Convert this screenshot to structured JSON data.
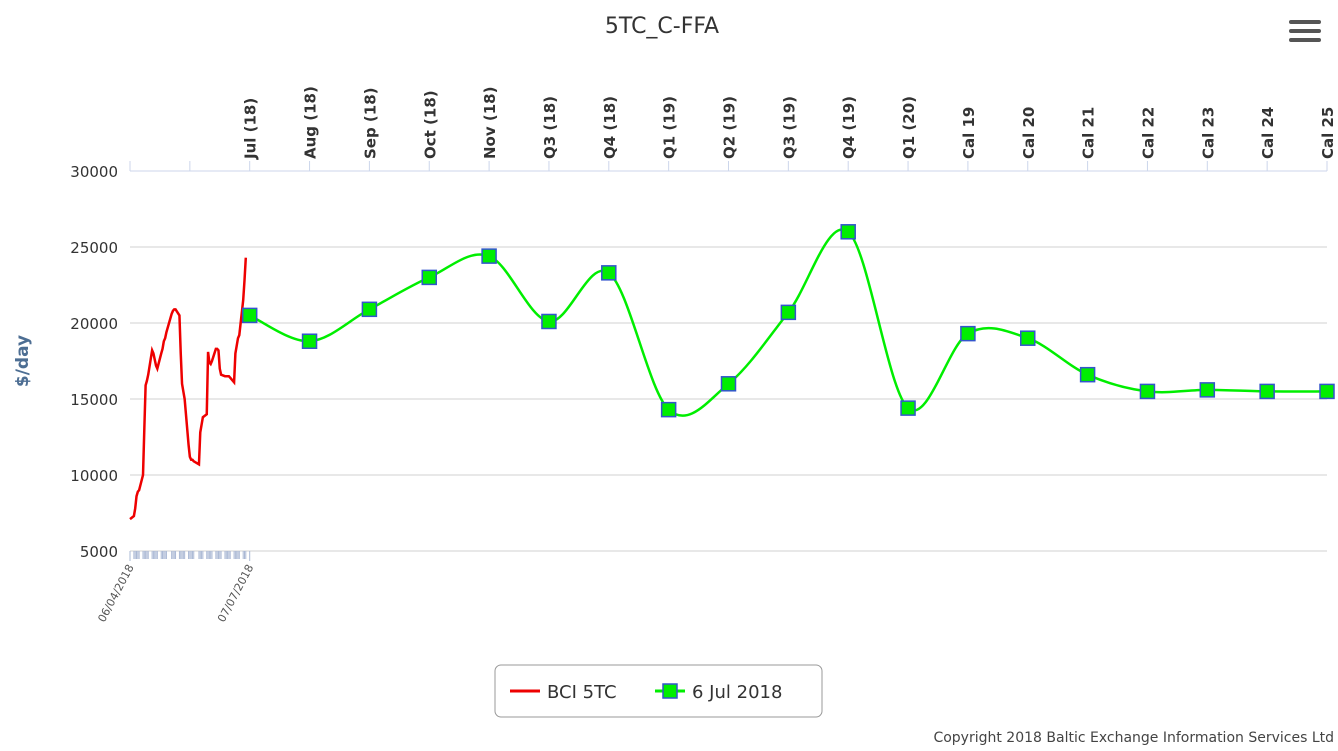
{
  "chart_data": {
    "type": "line",
    "title": "5TC_C-FFA",
    "ylabel": "$/day",
    "credit": "Copyright 2018 Baltic Exchange Information Services Ltd",
    "categories": [
      null,
      null,
      "Jul (18)",
      "Aug (18)",
      "Sep (18)",
      "Oct (18)",
      "Nov (18)",
      "Q3 (18)",
      "Q4 (18)",
      "Q1 (19)",
      "Q2 (19)",
      "Q3 (19)",
      "Q4 (19)",
      "Q1 (20)",
      "Cal 19",
      "Cal 20",
      "Cal 21",
      "Cal 22",
      "Cal 23",
      "Cal 24",
      "Cal 25"
    ],
    "xlim": [
      "06/04/2018",
      "07/07/2018"
    ],
    "xticks": [
      "06/04/2018",
      "07/07/2018"
    ],
    "ylim": [
      5000,
      30000
    ],
    "yticks": [
      5000,
      10000,
      15000,
      20000,
      25000,
      30000
    ],
    "grid": true,
    "legend": "bottom",
    "series": [
      {
        "name": "BCI 5TC",
        "color": "#ee0000",
        "x": [
          "06/04/2018",
          "09/04/2018",
          "10/04/2018",
          "11/04/2018",
          "12/04/2018",
          "13/04/2018",
          "16/04/2018",
          "17/04/2018",
          "18/04/2018",
          "19/04/2018",
          "20/04/2018",
          "23/04/2018",
          "24/04/2018",
          "25/04/2018",
          "26/04/2018",
          "27/04/2018",
          "30/04/2018",
          "01/05/2018",
          "02/05/2018",
          "03/05/2018",
          "04/05/2018",
          "08/05/2018",
          "09/05/2018",
          "10/05/2018",
          "11/05/2018",
          "14/05/2018",
          "15/05/2018",
          "16/05/2018",
          "17/05/2018",
          "18/05/2018",
          "21/05/2018",
          "22/05/2018",
          "23/05/2018",
          "24/05/2018",
          "25/05/2018",
          "29/05/2018",
          "30/05/2018",
          "31/05/2018",
          "01/06/2018",
          "04/06/2018",
          "05/06/2018",
          "06/06/2018",
          "07/06/2018",
          "08/06/2018",
          "11/06/2018",
          "12/06/2018",
          "13/06/2018",
          "14/06/2018",
          "15/06/2018",
          "18/06/2018",
          "19/06/2018",
          "20/06/2018",
          "21/06/2018",
          "22/06/2018",
          "25/06/2018",
          "26/06/2018",
          "27/06/2018",
          "28/06/2018",
          "29/06/2018",
          "02/07/2018",
          "03/07/2018",
          "04/07/2018"
        ],
        "values": [
          7100,
          7300,
          7800,
          8600,
          8900,
          9000,
          10000,
          13000,
          15900,
          16200,
          16600,
          18200,
          18000,
          17600,
          17200,
          17000,
          18000,
          18300,
          18800,
          19000,
          19400,
          20600,
          20800,
          20900,
          20900,
          20500,
          18000,
          16000,
          15500,
          15000,
          12000,
          11200,
          11000,
          11000,
          10900,
          10700,
          12800,
          13300,
          13800,
          14000,
          18100,
          17400,
          17300,
          17500,
          18300,
          18300,
          18200,
          17000,
          16600,
          16500,
          16500,
          16500,
          16500,
          16400,
          16100,
          18000,
          18500,
          19000,
          19200,
          21500,
          22800,
          24300
        ]
      },
      {
        "name": "6 Jul 2018",
        "color": "#00ee00",
        "marker_edge": "#3355cc",
        "values": [
          null,
          null,
          20500,
          18800,
          20900,
          23000,
          24400,
          20100,
          23300,
          14300,
          16000,
          20700,
          26000,
          14400,
          19300,
          19000,
          16600,
          15500,
          15600,
          15500,
          15500
        ]
      }
    ]
  }
}
